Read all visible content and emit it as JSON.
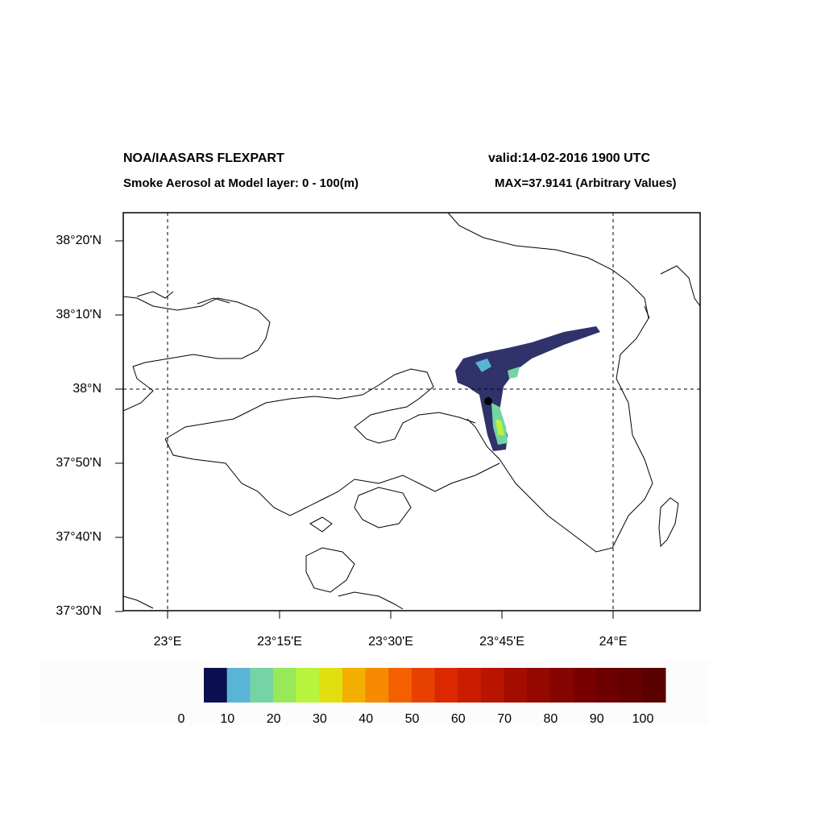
{
  "header": {
    "title": "NOA/IAASARS FLEXPART",
    "subtitle": "Smoke Aerosol at Model layer: 0 - 100(m)",
    "valid": "valid:14-02-2016 1900 UTC",
    "max": "MAX=37.9141 (Arbitrary Values)"
  },
  "map": {
    "lat_labels": [
      "38°20'N",
      "38°10'N",
      "38°N",
      "37°50'N",
      "37°40'N",
      "37°30'N"
    ],
    "lon_labels": [
      "23°E",
      "23°15'E",
      "23°30'E",
      "23°45'E",
      "24°E"
    ]
  },
  "colorbar": {
    "colors": [
      "#0a0f4f",
      "#5ab4d6",
      "#74d4a4",
      "#98e85a",
      "#b8f43c",
      "#e0e010",
      "#f4b000",
      "#f68a00",
      "#f46000",
      "#e84000",
      "#dc2800",
      "#cc1c00",
      "#b81400",
      "#a40c00",
      "#940800",
      "#840400",
      "#780000",
      "#6c0000",
      "#640000",
      "#5a0000"
    ],
    "labels": [
      "0",
      "10",
      "20",
      "30",
      "40",
      "50",
      "60",
      "70",
      "80",
      "90",
      "100"
    ]
  }
}
